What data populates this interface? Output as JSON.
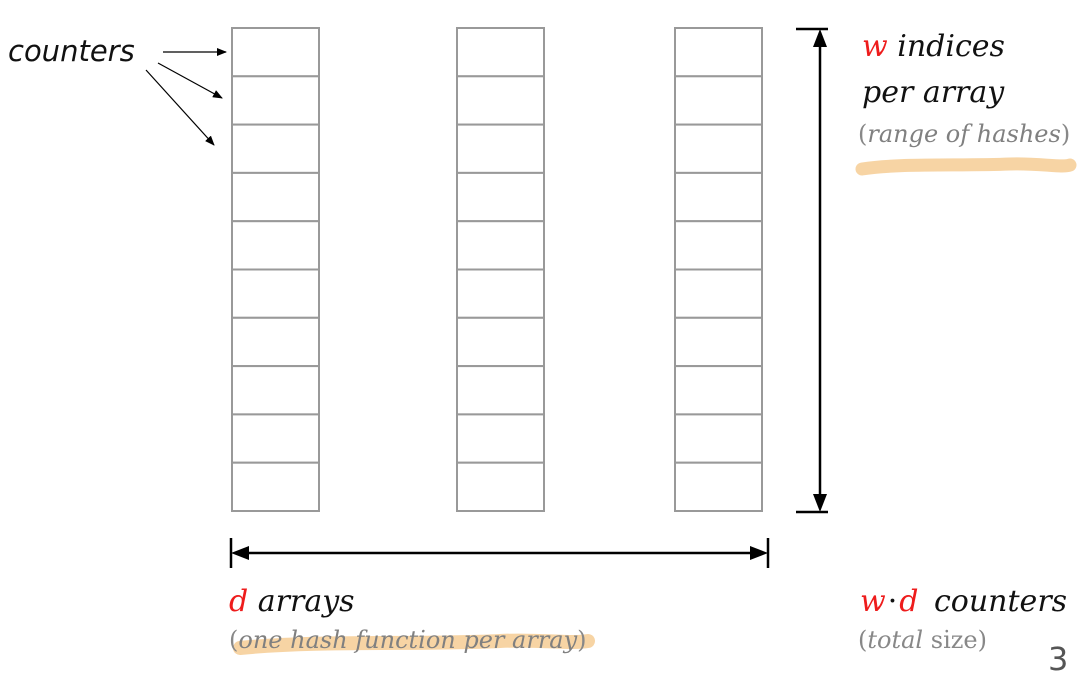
{
  "diagram": {
    "counters_label": "counters",
    "w_symbol": "w",
    "w_text": "indices",
    "w_text_line2": "per array",
    "w_note_open": "(",
    "w_note": "range of hashes",
    "w_note_close": ")",
    "d_symbol": "d",
    "d_text": "arrays",
    "d_note_open": "(",
    "d_note": "one hash function per array",
    "d_note_close": ")",
    "total_w": "w",
    "total_dot": "·",
    "total_d": "d",
    "total_text": "counters",
    "total_note_open": "(",
    "total_note_em": "total",
    "total_note_rest": "size",
    "total_note_close": ")",
    "page_number": "3",
    "array_count": 3,
    "rows_per_array": 10
  },
  "colors": {
    "symbol": "#ee1c1c",
    "highlight": "#f6cf9a",
    "cell_border": "#999999"
  }
}
